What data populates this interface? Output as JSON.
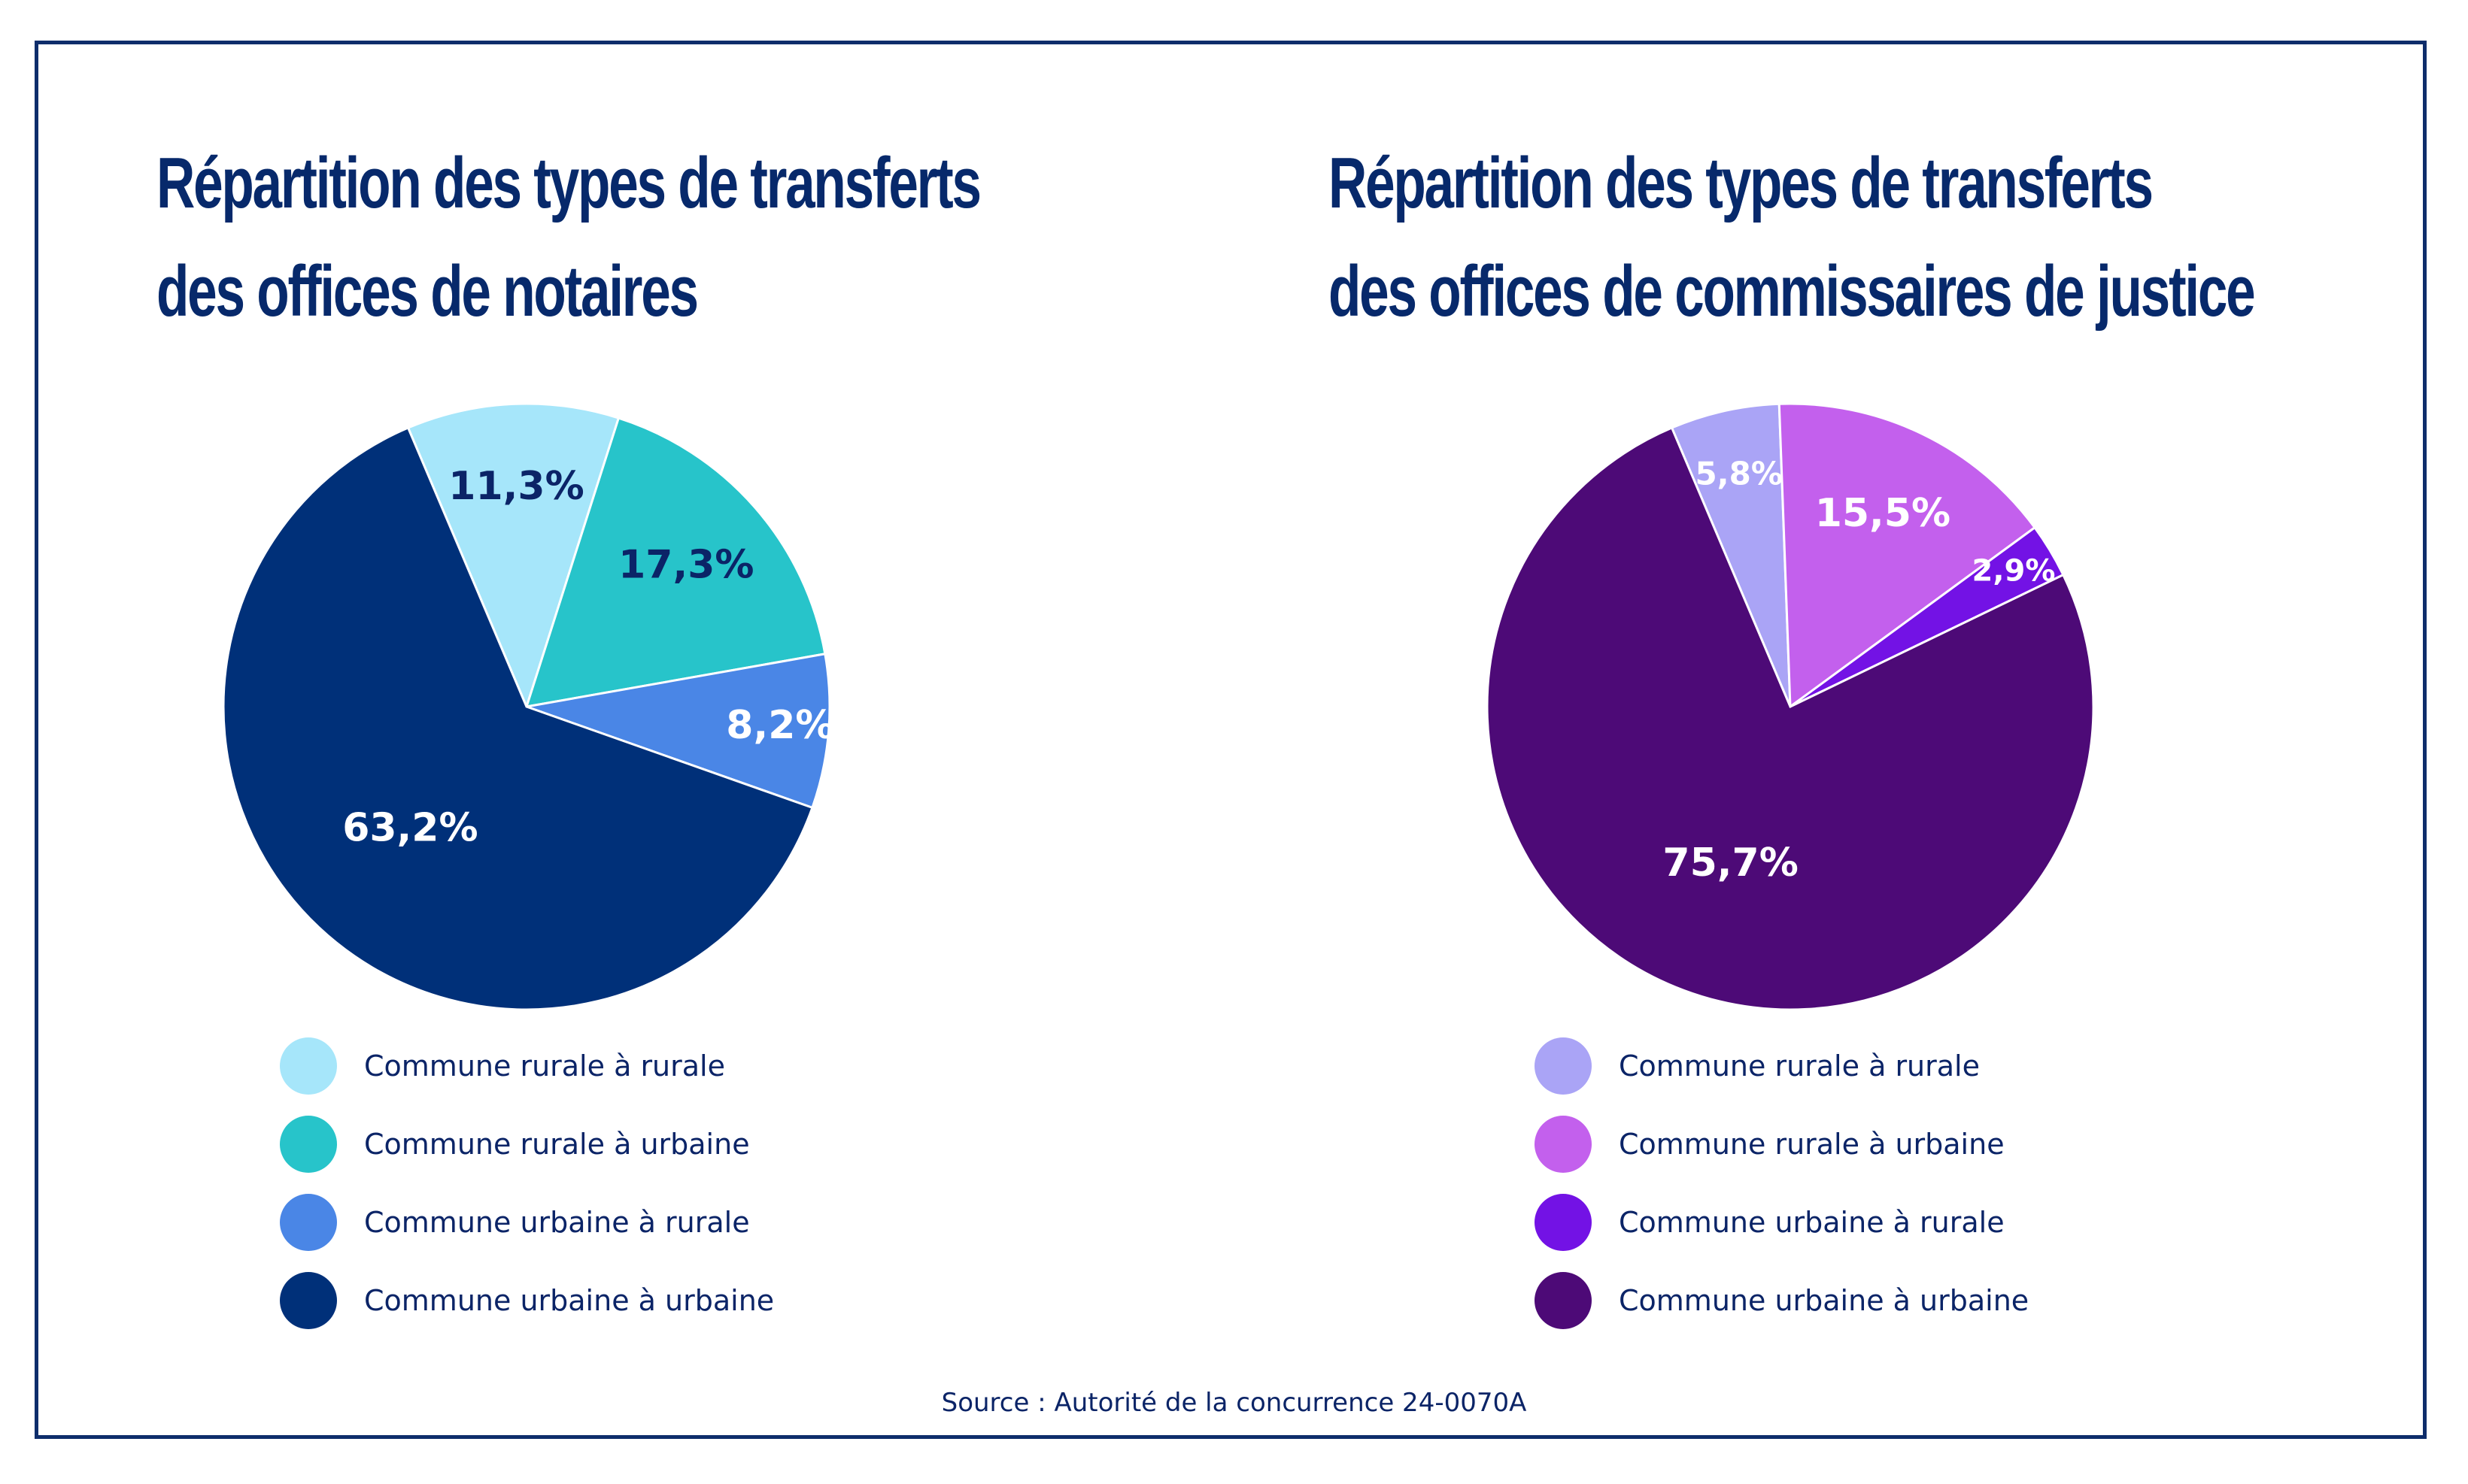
{
  "source": "Source : Autorité de la concurrence 24-0070A",
  "chart_data": [
    {
      "type": "pie",
      "title_lines": [
        "Répartition des types de transferts",
        "des offices de notaires"
      ],
      "categories": [
        "Commune rurale à rurale",
        "Commune rurale à urbaine",
        "Commune urbaine à rurale",
        "Commune urbaine à urbaine"
      ],
      "values": [
        11.3,
        17.3,
        8.2,
        63.2
      ],
      "value_labels": [
        "11,3%",
        "17,3%",
        "8,2%",
        "63,2%"
      ],
      "colors": [
        "#a6e6fa",
        "#27c4ca",
        "#4a86e6",
        "#003079"
      ],
      "label_colors": [
        "#0b2467",
        "#0b2467",
        "#ffffff",
        "#ffffff"
      ],
      "legend": "bottom",
      "start_angle_deg": -23
    },
    {
      "type": "pie",
      "title_lines": [
        "Répartition des types de transferts",
        "des offices de commissaires de justice"
      ],
      "categories": [
        "Commune rurale à rurale",
        "Commune rurale à urbaine",
        "Commune urbaine à rurale",
        "Commune urbaine à urbaine"
      ],
      "values": [
        5.8,
        15.5,
        2.9,
        75.7
      ],
      "value_labels": [
        "5,8%",
        "15,5%",
        "2,9%",
        "75,7%"
      ],
      "colors": [
        "#aaa4f6",
        "#c360ed",
        "#7312e5",
        "#4d0a77"
      ],
      "label_colors": [
        "#ffffff",
        "#ffffff",
        "#ffffff",
        "#ffffff"
      ],
      "legend": "bottom",
      "start_angle_deg": -23
    }
  ]
}
